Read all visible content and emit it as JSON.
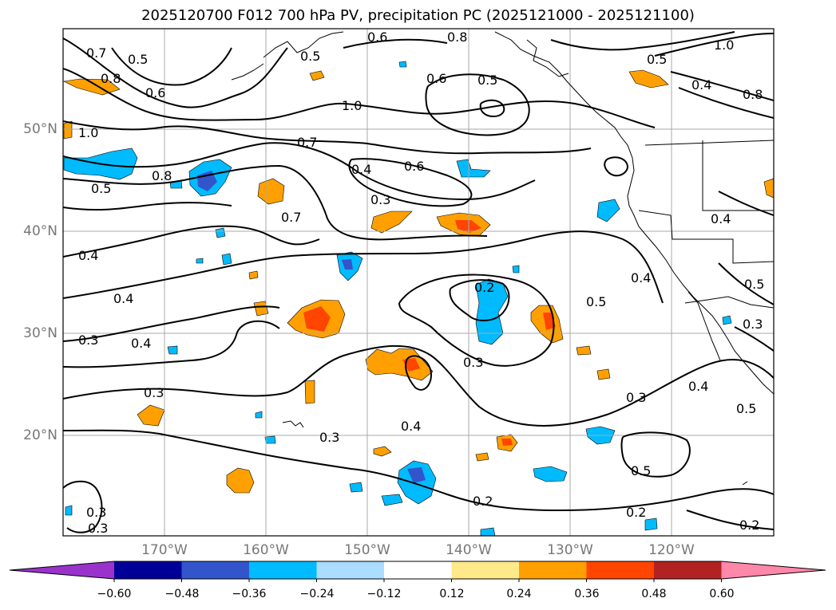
{
  "title": "2025120700 F012 700 hPa PV, precipitation PC (2025121000 - 2025121100)",
  "lat_labels": [
    "50°N",
    "40°N",
    "30°N",
    "20°N"
  ],
  "lon_labels": [
    "170°W",
    "160°W",
    "150°W",
    "140°W",
    "130°W",
    "120°W"
  ],
  "colorbar": {
    "ticks": [
      "−0.60",
      "−0.48",
      "−0.36",
      "−0.24",
      "−0.12",
      "0.12",
      "0.24",
      "0.36",
      "0.48",
      "0.60"
    ],
    "colors": [
      "#9933cc",
      "#000099",
      "#3355cc",
      "#00bbff",
      "#aaddff",
      "#ffffff",
      "#ffe98a",
      "#ffa000",
      "#ff4500",
      "#b22222",
      "#ff88aa"
    ]
  },
  "contour_labels": [
    "0.7",
    "0.5",
    "0.8",
    "0.6",
    "0.5",
    "0.6",
    "1.0",
    "0.8",
    "1.0",
    "0.5",
    "0.6",
    "0.5",
    "0.4",
    "0.8",
    "1.0",
    "0.8",
    "0.7",
    "0.4",
    "0.6",
    "0.5",
    "0.3",
    "0.7",
    "0.4",
    "0.4",
    "0.2",
    "0.4",
    "0.5",
    "0.5",
    "0.3",
    "0.3",
    "0.4",
    "0.3",
    "0.3",
    "0.4",
    "0.3",
    "0.4",
    "0.5",
    "0.3",
    "0.4",
    "0.5",
    "0.2",
    "0.2",
    "0.3",
    "0.3",
    "0.2"
  ],
  "fill_colors": {
    "orange": "#ffa000",
    "red": "#ff4500",
    "light_blue": "#00bbff",
    "blue": "#3355cc"
  }
}
